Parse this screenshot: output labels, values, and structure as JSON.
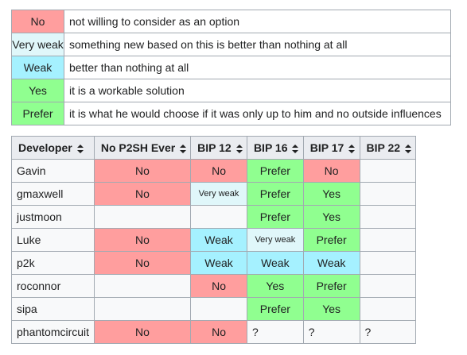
{
  "legend": [
    {
      "code": "No",
      "desc": "not willing to consider as an option",
      "color": "#ff9e9e"
    },
    {
      "code": "Very weak",
      "desc": "something new based on this is better than nothing at all",
      "color": "#e0f7fa"
    },
    {
      "code": "Weak",
      "desc": "better than nothing at all",
      "color": "#a5f1ff"
    },
    {
      "code": "Yes",
      "desc": "it is a workable solution",
      "color": "#90ff90"
    },
    {
      "code": "Prefer",
      "desc": "it is what he would choose if it was only up to him and no outside influences",
      "color": "#90ff90"
    }
  ],
  "table": {
    "headers": [
      "Developer",
      "No P2SH Ever",
      "BIP 12",
      "BIP 16",
      "BIP 17",
      "BIP 22"
    ],
    "rows": [
      {
        "developer": "Gavin",
        "cells": [
          "No",
          "No",
          "Prefer",
          "No",
          ""
        ]
      },
      {
        "developer": "gmaxwell",
        "cells": [
          "No",
          "Very weak",
          "Prefer",
          "Yes",
          ""
        ]
      },
      {
        "developer": "justmoon",
        "cells": [
          "",
          "",
          "Prefer",
          "Yes",
          ""
        ]
      },
      {
        "developer": "Luke",
        "cells": [
          "No",
          "Weak",
          "Very weak",
          "Prefer",
          ""
        ]
      },
      {
        "developer": "p2k",
        "cells": [
          "No",
          "Weak",
          "Weak",
          "Weak",
          ""
        ]
      },
      {
        "developer": "roconnor",
        "cells": [
          "",
          "No",
          "Yes",
          "Prefer",
          ""
        ]
      },
      {
        "developer": "sipa",
        "cells": [
          "",
          "",
          "Prefer",
          "Yes",
          ""
        ]
      },
      {
        "developer": "phantomcircuit",
        "cells": [
          "No",
          "No",
          "?",
          "?",
          "?"
        ]
      }
    ]
  },
  "icons": {
    "sort": "sort-arrows-icon"
  }
}
